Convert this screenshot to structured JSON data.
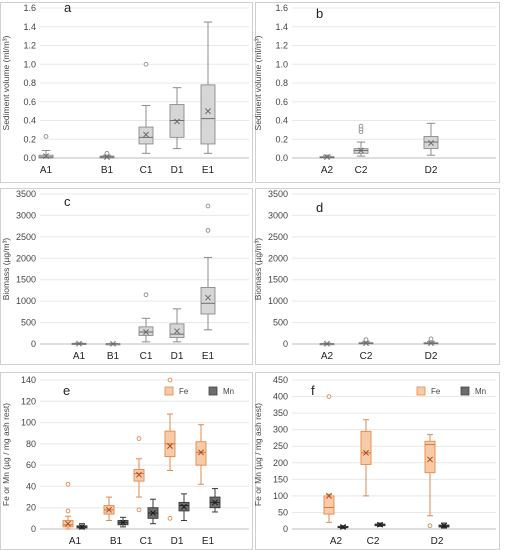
{
  "chart_data": [
    {
      "panel": "a",
      "type": "box",
      "ylabel": "Sediment volume (ml/m³)",
      "ylim": [
        0,
        1.6
      ],
      "yticks": [
        "0.0",
        "0.2",
        "0.4",
        "0.6",
        "0.8",
        "1.0",
        "1.2",
        "1.4",
        "1.6"
      ],
      "categories": [
        "A1",
        "B1",
        "C1",
        "D1",
        "E1"
      ],
      "colors": [
        "#d6d6d6"
      ],
      "boxes": [
        {
          "cat": "A1",
          "min": 0,
          "q1": 0,
          "median": 0.01,
          "q3": 0.03,
          "max": 0.08,
          "mean": 0.02,
          "outliers": [
            0.23
          ]
        },
        {
          "cat": "B1",
          "min": 0,
          "q1": 0,
          "median": 0.01,
          "q3": 0.02,
          "max": 0.03,
          "mean": 0.01,
          "outliers": [
            0.05
          ]
        },
        {
          "cat": "C1",
          "min": 0.05,
          "q1": 0.15,
          "median": 0.22,
          "q3": 0.33,
          "max": 0.56,
          "mean": 0.25,
          "outliers": [
            1.0
          ]
        },
        {
          "cat": "D1",
          "min": 0.1,
          "q1": 0.22,
          "median": 0.4,
          "q3": 0.57,
          "max": 0.75,
          "mean": 0.39,
          "outliers": []
        },
        {
          "cat": "E1",
          "min": 0.05,
          "q1": 0.15,
          "median": 0.42,
          "q3": 0.78,
          "max": 1.45,
          "mean": 0.5,
          "outliers": []
        }
      ]
    },
    {
      "panel": "b",
      "type": "box",
      "ylabel": "Sediment volume (ml/m³)",
      "ylim": [
        0,
        1.6
      ],
      "yticks": [
        "0.0",
        "0.2",
        "0.4",
        "0.6",
        "0.8",
        "1.0",
        "1.2",
        "1.4",
        "1.6"
      ],
      "categories": [
        "A2",
        "C2",
        "D2"
      ],
      "colors": [
        "#d6d6d6"
      ],
      "boxes": [
        {
          "cat": "A2",
          "min": 0,
          "q1": 0,
          "median": 0.005,
          "q3": 0.015,
          "max": 0.03,
          "mean": 0.01,
          "outliers": []
        },
        {
          "cat": "C2",
          "min": 0.02,
          "q1": 0.05,
          "median": 0.08,
          "q3": 0.1,
          "max": 0.17,
          "mean": 0.08,
          "outliers": [
            0.28,
            0.31,
            0.34
          ]
        },
        {
          "cat": "D2",
          "min": 0.03,
          "q1": 0.1,
          "median": 0.17,
          "q3": 0.23,
          "max": 0.37,
          "mean": 0.16,
          "outliers": []
        }
      ]
    },
    {
      "panel": "c",
      "type": "box",
      "ylabel": "Biomass (µg/m³)",
      "ylim": [
        0,
        3500
      ],
      "yticks": [
        "0",
        "500",
        "1000",
        "1500",
        "2000",
        "2500",
        "3000",
        "3500"
      ],
      "categories": [
        "A1",
        "B1",
        "C1",
        "D1",
        "E1"
      ],
      "colors": [
        "#d6d6d6"
      ],
      "boxes": [
        {
          "cat": "A1",
          "min": 0,
          "q1": 0,
          "median": 5,
          "q3": 15,
          "max": 25,
          "mean": 8,
          "outliers": []
        },
        {
          "cat": "B1",
          "min": 0,
          "q1": 0,
          "median": 3,
          "q3": 8,
          "max": 15,
          "mean": 5,
          "outliers": []
        },
        {
          "cat": "C1",
          "min": 50,
          "q1": 200,
          "median": 280,
          "q3": 400,
          "max": 600,
          "mean": 280,
          "outliers": [
            1150
          ]
        },
        {
          "cat": "D1",
          "min": 50,
          "q1": 150,
          "median": 230,
          "q3": 470,
          "max": 820,
          "mean": 300,
          "outliers": []
        },
        {
          "cat": "E1",
          "min": 330,
          "q1": 700,
          "median": 950,
          "q3": 1320,
          "max": 2020,
          "mean": 1080,
          "outliers": [
            2650,
            3220
          ]
        }
      ]
    },
    {
      "panel": "d",
      "type": "box",
      "ylabel": "Biomass (µg/m³)",
      "ylim": [
        0,
        3500
      ],
      "yticks": [
        "0",
        "500",
        "1000",
        "1500",
        "2000",
        "2500",
        "3000",
        "3500"
      ],
      "categories": [
        "A2",
        "C2",
        "D2"
      ],
      "colors": [
        "#d6d6d6"
      ],
      "boxes": [
        {
          "cat": "A2",
          "min": 0,
          "q1": 0,
          "median": 3,
          "q3": 10,
          "max": 20,
          "mean": 6,
          "outliers": []
        },
        {
          "cat": "C2",
          "min": 0,
          "q1": 5,
          "median": 15,
          "q3": 30,
          "max": 50,
          "mean": 20,
          "outliers": [
            100
          ]
        },
        {
          "cat": "D2",
          "min": 0,
          "q1": 5,
          "median": 15,
          "q3": 30,
          "max": 50,
          "mean": 20,
          "outliers": [
            120
          ]
        }
      ]
    },
    {
      "panel": "e",
      "type": "box",
      "ylabel": "Fe or Mn (µg / mg ash rest)",
      "ylim": [
        0,
        140
      ],
      "yticks": [
        "0",
        "20",
        "40",
        "60",
        "80",
        "100",
        "120",
        "140"
      ],
      "categories": [
        "A1",
        "B1",
        "C1",
        "D1",
        "E1"
      ],
      "legend": [
        {
          "name": "Fe",
          "color": "#f8cba8"
        },
        {
          "name": "Mn",
          "color": "#6d6d6d"
        }
      ],
      "legend_position": "top-right",
      "colors": [
        "#f8cba8",
        "#6d6d6d"
      ],
      "boxes": [
        {
          "cat": "A1",
          "series": "Fe",
          "min": 0,
          "q1": 2,
          "median": 4,
          "q3": 8,
          "max": 12,
          "mean": 5,
          "outliers": [
            17,
            42
          ]
        },
        {
          "cat": "A1",
          "series": "Mn",
          "min": 0,
          "q1": 1,
          "median": 2,
          "q3": 3,
          "max": 5,
          "mean": 2,
          "outliers": []
        },
        {
          "cat": "B1",
          "series": "Fe",
          "min": 8,
          "q1": 14,
          "median": 18,
          "q3": 22,
          "max": 30,
          "mean": 18,
          "outliers": []
        },
        {
          "cat": "B1",
          "series": "Mn",
          "min": 2,
          "q1": 4,
          "median": 6,
          "q3": 8,
          "max": 11,
          "mean": 6,
          "outliers": []
        },
        {
          "cat": "C1",
          "series": "Fe",
          "min": 30,
          "q1": 45,
          "median": 52,
          "q3": 56,
          "max": 66,
          "mean": 51,
          "outliers": [
            18,
            85
          ]
        },
        {
          "cat": "C1",
          "series": "Mn",
          "min": 5,
          "q1": 10,
          "median": 15,
          "q3": 20,
          "max": 28,
          "mean": 15,
          "outliers": []
        },
        {
          "cat": "D1",
          "series": "Fe",
          "min": 55,
          "q1": 68,
          "median": 80,
          "q3": 92,
          "max": 108,
          "mean": 78,
          "outliers": [
            140,
            10
          ]
        },
        {
          "cat": "D1",
          "series": "Mn",
          "min": 8,
          "q1": 17,
          "median": 22,
          "q3": 25,
          "max": 33,
          "mean": 21,
          "outliers": []
        },
        {
          "cat": "E1",
          "series": "Fe",
          "min": 42,
          "q1": 60,
          "median": 72,
          "q3": 82,
          "max": 98,
          "mean": 72,
          "outliers": []
        },
        {
          "cat": "E1",
          "series": "Mn",
          "min": 16,
          "q1": 20,
          "median": 25,
          "q3": 30,
          "max": 38,
          "mean": 25,
          "outliers": []
        }
      ]
    },
    {
      "panel": "f",
      "type": "box",
      "ylabel": "Fe or Mn (µg / mg ash rest)",
      "ylim": [
        0,
        450
      ],
      "yticks": [
        "0",
        "50",
        "100",
        "150",
        "200",
        "250",
        "300",
        "350",
        "400",
        "450"
      ],
      "categories": [
        "A2",
        "C2",
        "D2"
      ],
      "legend": [
        {
          "name": "Fe",
          "color": "#f8cba8"
        },
        {
          "name": "Mn",
          "color": "#6d6d6d"
        }
      ],
      "legend_position": "top-right",
      "colors": [
        "#f8cba8",
        "#6d6d6d"
      ],
      "boxes": [
        {
          "cat": "A2",
          "series": "Fe",
          "min": 20,
          "q1": 45,
          "median": 65,
          "q3": 100,
          "max": 105,
          "mean": 100,
          "outliers": [
            400
          ]
        },
        {
          "cat": "A2",
          "series": "Mn",
          "min": 2,
          "q1": 4,
          "median": 5,
          "q3": 8,
          "max": 10,
          "mean": 6,
          "outliers": []
        },
        {
          "cat": "C2",
          "series": "Fe",
          "min": 100,
          "q1": 195,
          "median": 230,
          "q3": 295,
          "max": 330,
          "mean": 230,
          "outliers": []
        },
        {
          "cat": "C2",
          "series": "Mn",
          "min": 8,
          "q1": 10,
          "median": 12,
          "q3": 15,
          "max": 18,
          "mean": 13,
          "outliers": []
        },
        {
          "cat": "D2",
          "series": "Fe",
          "min": 40,
          "q1": 170,
          "median": 255,
          "q3": 265,
          "max": 285,
          "mean": 210,
          "outliers": [
            10
          ]
        },
        {
          "cat": "D2",
          "series": "Mn",
          "min": 3,
          "q1": 6,
          "median": 9,
          "q3": 12,
          "max": 18,
          "mean": 10,
          "outliers": []
        }
      ]
    }
  ]
}
